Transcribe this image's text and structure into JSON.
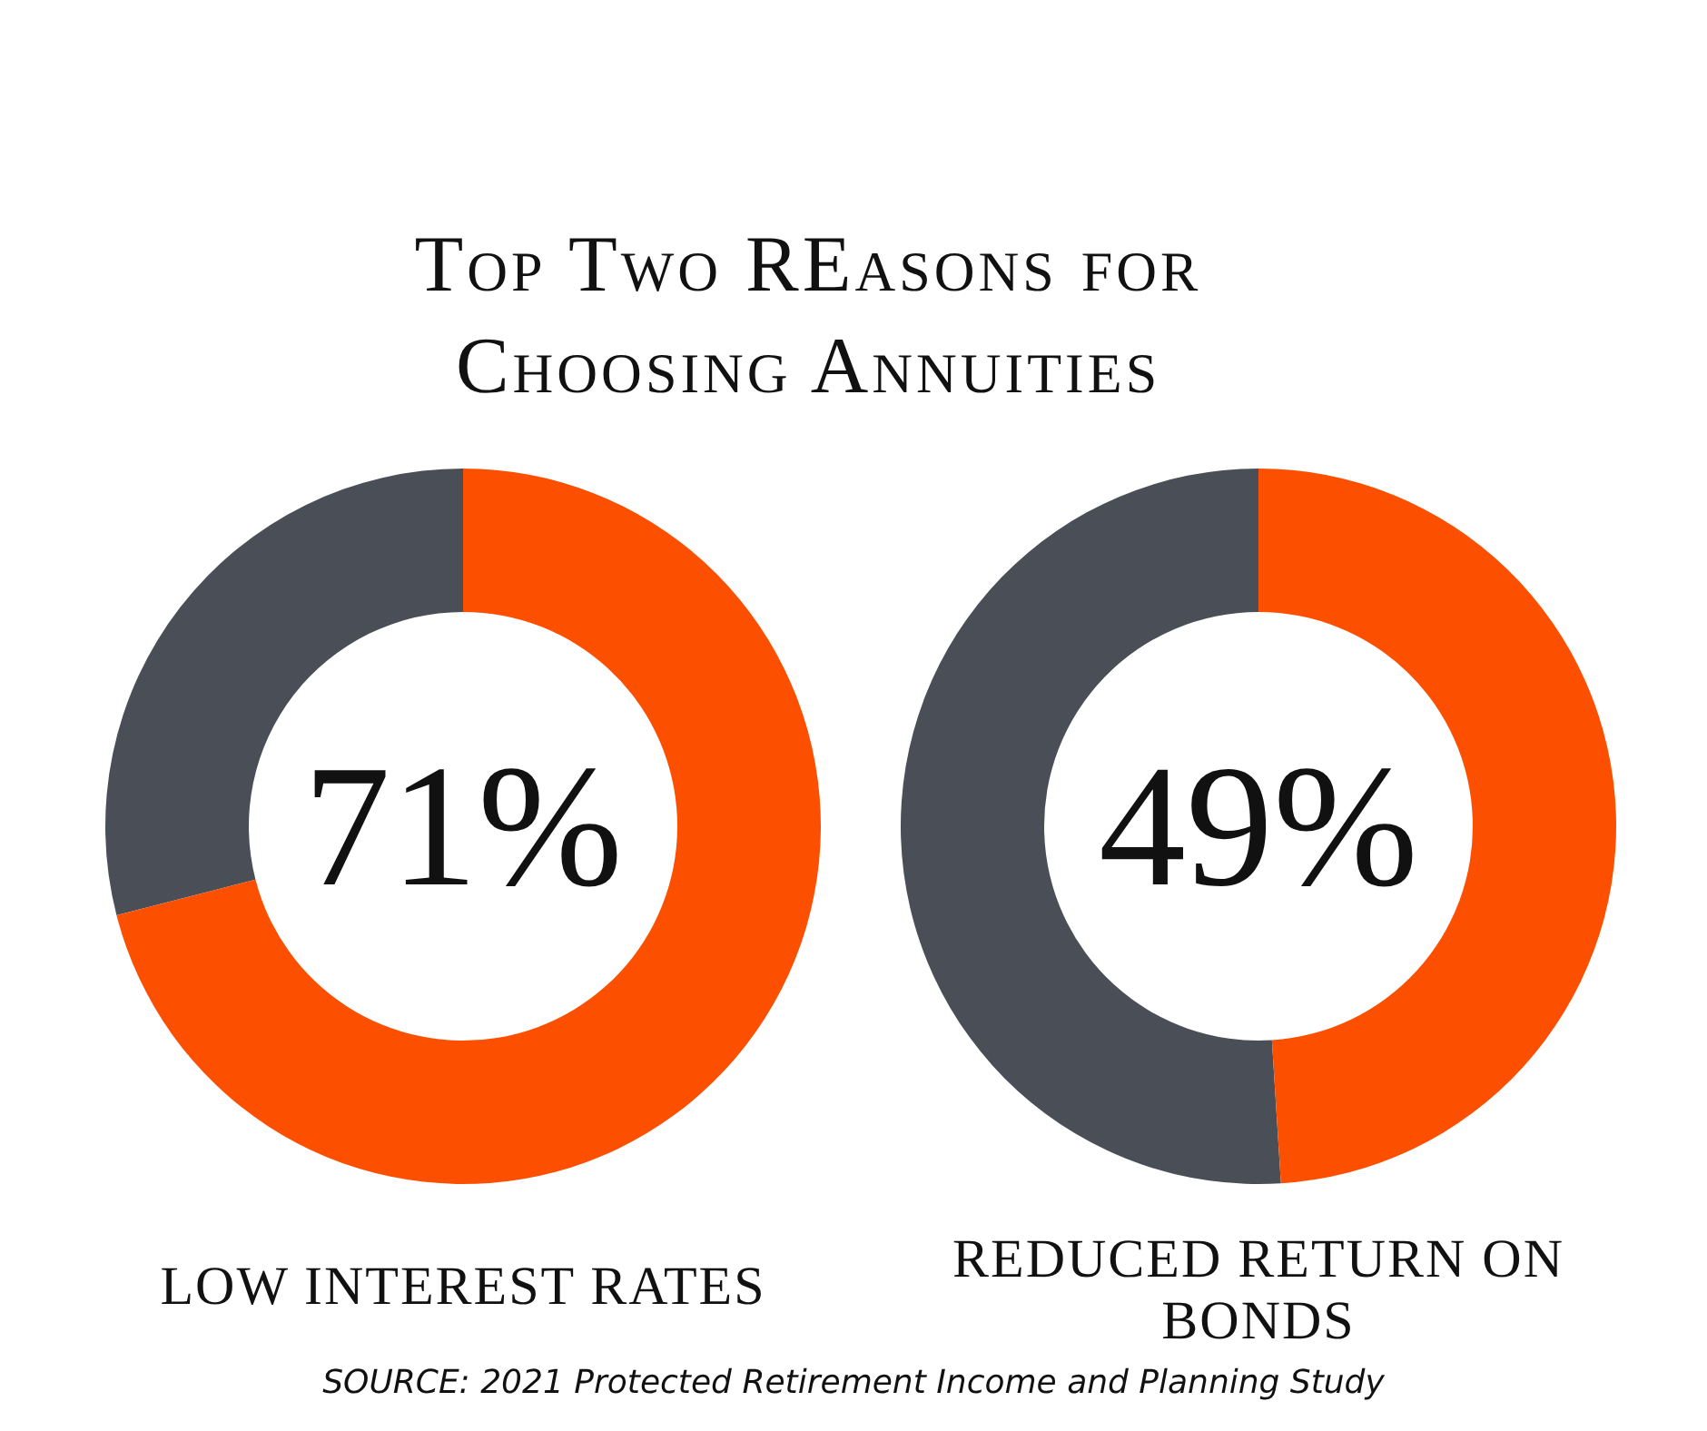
{
  "chart_data": [
    {
      "type": "donut",
      "title": "Top Two REasons for Choosing Annuities",
      "categories": [
        null,
        null
      ],
      "values": [
        71,
        29
      ],
      "colors": [
        "#fc5000",
        "#4a4f57"
      ],
      "value_labels": [
        "71%",
        null
      ],
      "xlabel": "LOW INTEREST RATES"
    },
    {
      "type": "donut",
      "categories": [
        null,
        null
      ],
      "values": [
        49,
        51
      ],
      "colors": [
        "#fc5000",
        "#4a4f57"
      ],
      "value_labels": [
        "49%",
        null
      ],
      "xlabel": "REDUCED RETURN ON BONDS",
      "annotations": [
        "SOURCE: 2021 Protected Retirement Income and Planning Study"
      ]
    }
  ]
}
